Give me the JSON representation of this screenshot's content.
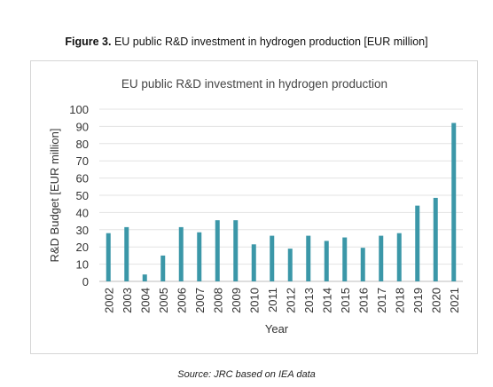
{
  "figure": {
    "label": "Figure 3.",
    "caption": "EU public R&D investment in hydrogen production [EUR million]"
  },
  "source": "Source: JRC based on IEA data",
  "chart_data": {
    "type": "bar",
    "title": "EU public R&D investment in hydrogen production",
    "xlabel": "Year",
    "ylabel": "R&D Budget [EUR million]",
    "ylim": [
      0,
      100
    ],
    "yticks": [
      0,
      10,
      20,
      30,
      40,
      50,
      60,
      70,
      80,
      90,
      100
    ],
    "grid": true,
    "legend": "none",
    "bar_color": "#3b97a8",
    "categories": [
      "2002",
      "2003",
      "2004",
      "2005",
      "2006",
      "2007",
      "2008",
      "2009",
      "2010",
      "2011",
      "2012",
      "2013",
      "2014",
      "2015",
      "2016",
      "2017",
      "2018",
      "2019",
      "2020",
      "2021"
    ],
    "values": [
      28,
      31.5,
      4,
      15,
      31.5,
      28.5,
      35.5,
      35.5,
      21.5,
      26.5,
      19,
      26.5,
      23.5,
      25.5,
      19.5,
      26.5,
      28,
      44,
      48.5,
      92
    ]
  }
}
